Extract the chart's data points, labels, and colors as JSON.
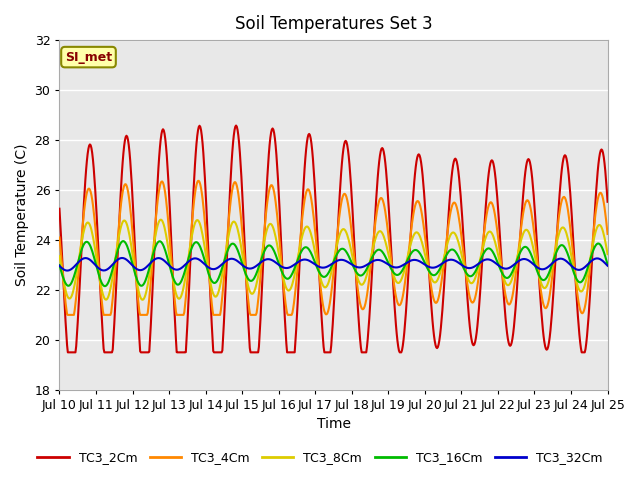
{
  "title": "Soil Temperatures Set 3",
  "xlabel": "Time",
  "ylabel": "Soil Temperature (C)",
  "ylim": [
    18,
    32
  ],
  "xlim": [
    0,
    360
  ],
  "annotation": "SI_met",
  "bg_color": "#e8e8e8",
  "grid_color": "white",
  "x_tick_labels": [
    "Jul 10",
    "Jul 11",
    "Jul 12",
    "Jul 13",
    "Jul 14",
    "Jul 15",
    "Jul 16",
    "Jul 17",
    "Jul 18",
    "Jul 19",
    "Jul 20",
    "Jul 21",
    "Jul 22",
    "Jul 23",
    "Jul 24",
    "Jul 25"
  ],
  "series": {
    "TC3_2Cm": {
      "color": "#cc0000",
      "lw": 1.5
    },
    "TC3_4Cm": {
      "color": "#ff8800",
      "lw": 1.5
    },
    "TC3_8Cm": {
      "color": "#ddcc00",
      "lw": 1.5
    },
    "TC3_16Cm": {
      "color": "#00bb00",
      "lw": 1.5
    },
    "TC3_32Cm": {
      "color": "#0000cc",
      "lw": 1.5
    }
  }
}
